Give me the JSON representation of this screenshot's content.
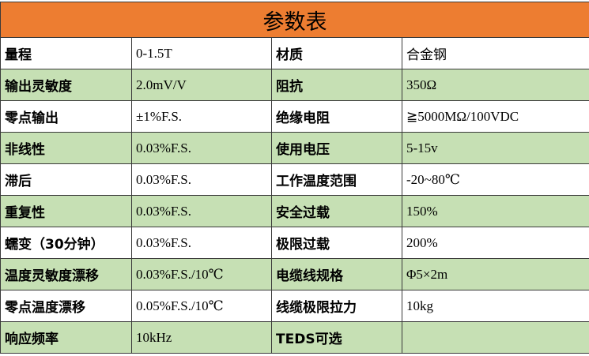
{
  "title": "参数表",
  "colors": {
    "header_bg": "#ED7D31",
    "alt_row_bg": "#C6E0B4",
    "row_bg": "#FFFFFF"
  },
  "rows": [
    {
      "l1": "量程",
      "v1": "0-1.5T",
      "l2": "材质",
      "v2": "合金钢"
    },
    {
      "l1": "输出灵敏度",
      "v1": "2.0mV/V",
      "l2": "阻抗",
      "v2": "350Ω"
    },
    {
      "l1": "零点输出",
      "v1": "±1%F.S.",
      "l2": "绝缘电阻",
      "v2": "≧5000MΩ/100VDC"
    },
    {
      "l1": "非线性",
      "v1": "0.03%F.S.",
      "l2": "使用电压",
      "v2": "5-15v"
    },
    {
      "l1": "滞后",
      "v1": "0.03%F.S.",
      "l2": "工作温度范围",
      "v2": "-20~80℃"
    },
    {
      "l1": "重复性",
      "v1": "0.03%F.S.",
      "l2": "安全过载",
      "v2": "150%"
    },
    {
      "l1": "蠕变（30分钟）",
      "v1": "0.03%F.S.",
      "l2": "极限过载",
      "v2": "200%"
    },
    {
      "l1": "温度灵敏度漂移",
      "v1": "0.03%F.S./10℃",
      "l2": "电缆线规格",
      "v2": "Φ5×2m"
    },
    {
      "l1": "零点温度漂移",
      "v1": "0.05%F.S./10℃",
      "l2": "线缆极限拉力",
      "v2": "10kg"
    },
    {
      "l1": "响应频率",
      "v1": "10kHz",
      "l2": "TEDS可选",
      "v2": ""
    }
  ]
}
